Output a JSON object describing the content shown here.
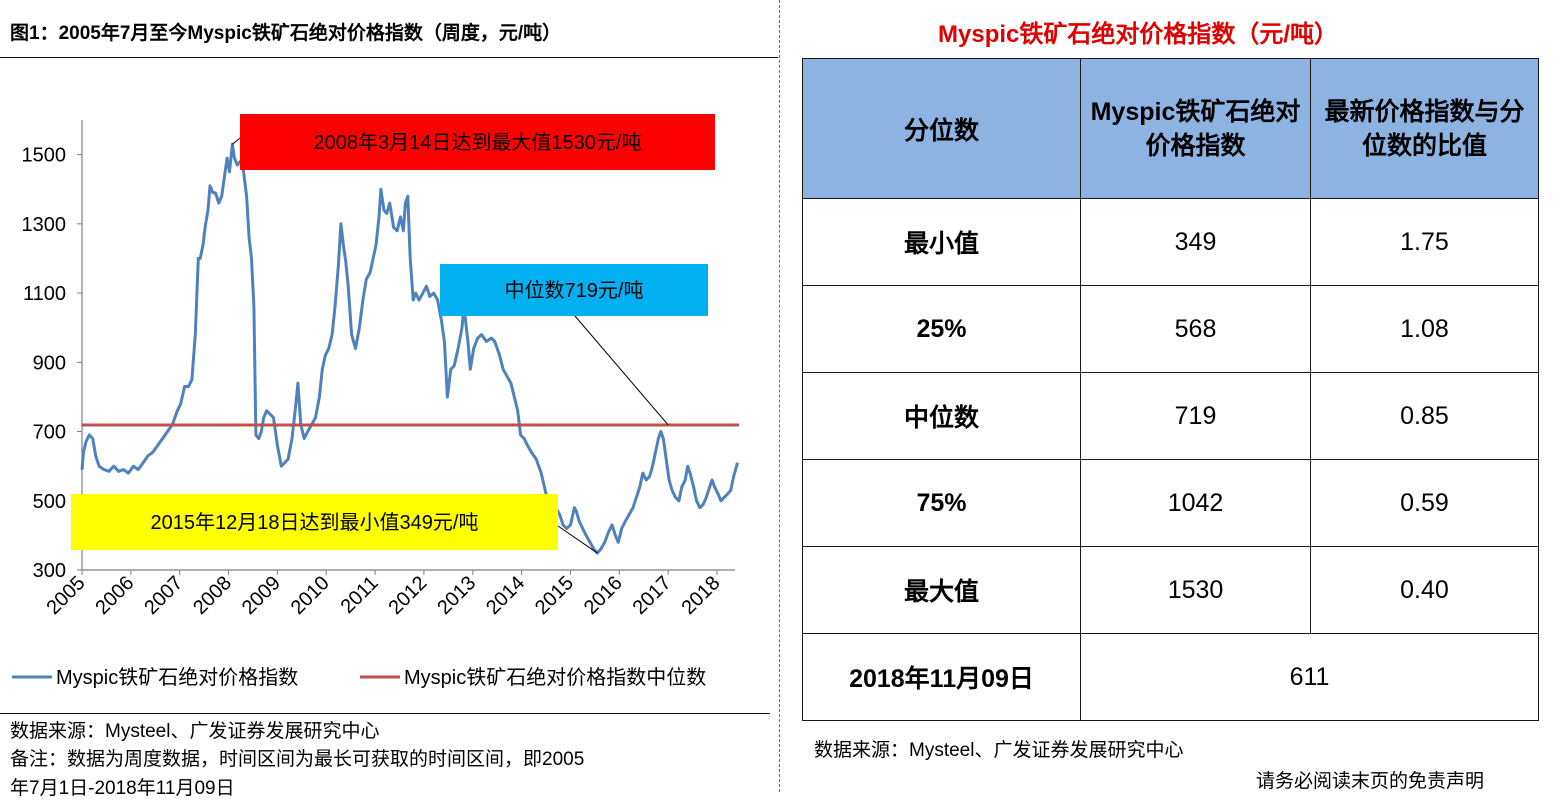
{
  "figure": {
    "title": "图1：2005年7月至今Myspic铁矿石绝对价格指数（周度，元/吨）"
  },
  "chart_data": {
    "type": "line",
    "y_ticks": [
      "300",
      "500",
      "700",
      "900",
      "1100",
      "1300",
      "1500"
    ],
    "x_ticks": [
      "2005",
      "2006",
      "2007",
      "2008",
      "2009",
      "2010",
      "2011",
      "2012",
      "2013",
      "2014",
      "2015",
      "2016",
      "2017",
      "2018"
    ],
    "ylim": [
      300,
      1600
    ],
    "xlim": [
      2005.0,
      2018.4
    ],
    "grid": false,
    "legend_position": "bottom",
    "series": [
      {
        "name": "Myspic铁矿石绝对价格指数",
        "color": "#4f81bd",
        "points": [
          [
            2005.0,
            590
          ],
          [
            2005.03,
            640
          ],
          [
            2005.08,
            670
          ],
          [
            2005.15,
            690
          ],
          [
            2005.22,
            680
          ],
          [
            2005.28,
            630
          ],
          [
            2005.35,
            600
          ],
          [
            2005.45,
            590
          ],
          [
            2005.55,
            585
          ],
          [
            2005.65,
            600
          ],
          [
            2005.75,
            585
          ],
          [
            2005.85,
            590
          ],
          [
            2005.95,
            580
          ],
          [
            2006.05,
            600
          ],
          [
            2006.15,
            590
          ],
          [
            2006.25,
            610
          ],
          [
            2006.35,
            630
          ],
          [
            2006.45,
            640
          ],
          [
            2006.55,
            660
          ],
          [
            2006.65,
            680
          ],
          [
            2006.75,
            700
          ],
          [
            2006.85,
            720
          ],
          [
            2006.95,
            760
          ],
          [
            2007.02,
            780
          ],
          [
            2007.1,
            830
          ],
          [
            2007.18,
            830
          ],
          [
            2007.25,
            850
          ],
          [
            2007.32,
            980
          ],
          [
            2007.38,
            1200
          ],
          [
            2007.42,
            1200
          ],
          [
            2007.48,
            1240
          ],
          [
            2007.52,
            1290
          ],
          [
            2007.58,
            1340
          ],
          [
            2007.62,
            1410
          ],
          [
            2007.68,
            1390
          ],
          [
            2007.73,
            1390
          ],
          [
            2007.8,
            1360
          ],
          [
            2007.86,
            1380
          ],
          [
            2007.93,
            1450
          ],
          [
            2007.97,
            1490
          ],
          [
            2008.02,
            1450
          ],
          [
            2008.08,
            1530
          ],
          [
            2008.12,
            1490
          ],
          [
            2008.18,
            1470
          ],
          [
            2008.24,
            1480
          ],
          [
            2008.3,
            1460
          ],
          [
            2008.37,
            1380
          ],
          [
            2008.42,
            1260
          ],
          [
            2008.47,
            1200
          ],
          [
            2008.52,
            1060
          ],
          [
            2008.56,
            690
          ],
          [
            2008.62,
            680
          ],
          [
            2008.67,
            700
          ],
          [
            2008.72,
            740
          ],
          [
            2008.78,
            760
          ],
          [
            2008.85,
            750
          ],
          [
            2008.92,
            740
          ],
          [
            2009.0,
            660
          ],
          [
            2009.08,
            600
          ],
          [
            2009.15,
            610
          ],
          [
            2009.22,
            620
          ],
          [
            2009.3,
            680
          ],
          [
            2009.38,
            780
          ],
          [
            2009.42,
            840
          ],
          [
            2009.48,
            720
          ],
          [
            2009.55,
            680
          ],
          [
            2009.62,
            700
          ],
          [
            2009.7,
            720
          ],
          [
            2009.78,
            740
          ],
          [
            2009.86,
            800
          ],
          [
            2009.92,
            880
          ],
          [
            2009.98,
            920
          ],
          [
            2010.05,
            940
          ],
          [
            2010.12,
            980
          ],
          [
            2010.18,
            1060
          ],
          [
            2010.25,
            1180
          ],
          [
            2010.3,
            1300
          ],
          [
            2010.35,
            1240
          ],
          [
            2010.4,
            1190
          ],
          [
            2010.45,
            1120
          ],
          [
            2010.52,
            980
          ],
          [
            2010.6,
            940
          ],
          [
            2010.68,
            1000
          ],
          [
            2010.75,
            1080
          ],
          [
            2010.82,
            1140
          ],
          [
            2010.9,
            1160
          ],
          [
            2010.96,
            1200
          ],
          [
            2011.02,
            1240
          ],
          [
            2011.08,
            1320
          ],
          [
            2011.12,
            1400
          ],
          [
            2011.18,
            1340
          ],
          [
            2011.24,
            1330
          ],
          [
            2011.3,
            1360
          ],
          [
            2011.38,
            1290
          ],
          [
            2011.45,
            1280
          ],
          [
            2011.52,
            1320
          ],
          [
            2011.58,
            1280
          ],
          [
            2011.62,
            1360
          ],
          [
            2011.67,
            1380
          ],
          [
            2011.72,
            1200
          ],
          [
            2011.78,
            1080
          ],
          [
            2011.83,
            1100
          ],
          [
            2011.9,
            1080
          ],
          [
            2011.98,
            1100
          ],
          [
            2012.05,
            1120
          ],
          [
            2012.12,
            1090
          ],
          [
            2012.2,
            1100
          ],
          [
            2012.28,
            1080
          ],
          [
            2012.36,
            1020
          ],
          [
            2012.42,
            960
          ],
          [
            2012.48,
            800
          ],
          [
            2012.55,
            880
          ],
          [
            2012.62,
            890
          ],
          [
            2012.7,
            940
          ],
          [
            2012.78,
            1000
          ],
          [
            2012.82,
            1060
          ],
          [
            2012.9,
            960
          ],
          [
            2012.95,
            880
          ],
          [
            2013.02,
            940
          ],
          [
            2013.1,
            970
          ],
          [
            2013.18,
            980
          ],
          [
            2013.28,
            960
          ],
          [
            2013.38,
            970
          ],
          [
            2013.45,
            960
          ],
          [
            2013.55,
            920
          ],
          [
            2013.62,
            880
          ],
          [
            2013.7,
            860
          ],
          [
            2013.78,
            840
          ],
          [
            2013.85,
            800
          ],
          [
            2013.92,
            760
          ],
          [
            2013.98,
            690
          ],
          [
            2014.05,
            680
          ],
          [
            2014.12,
            660
          ],
          [
            2014.2,
            640
          ],
          [
            2014.3,
            620
          ],
          [
            2014.4,
            580
          ],
          [
            2014.5,
            520
          ],
          [
            2014.6,
            500
          ],
          [
            2014.7,
            480
          ],
          [
            2014.78,
            460
          ],
          [
            2014.85,
            430
          ],
          [
            2014.92,
            420
          ],
          [
            2015.0,
            430
          ],
          [
            2015.08,
            480
          ],
          [
            2015.12,
            470
          ],
          [
            2015.18,
            440
          ],
          [
            2015.25,
            420
          ],
          [
            2015.32,
            400
          ],
          [
            2015.4,
            380
          ],
          [
            2015.48,
            360
          ],
          [
            2015.55,
            349
          ],
          [
            2015.62,
            360
          ],
          [
            2015.7,
            380
          ],
          [
            2015.78,
            410
          ],
          [
            2015.85,
            430
          ],
          [
            2015.92,
            400
          ],
          [
            2015.98,
            380
          ],
          [
            2016.05,
            420
          ],
          [
            2016.12,
            440
          ],
          [
            2016.2,
            460
          ],
          [
            2016.28,
            480
          ],
          [
            2016.35,
            510
          ],
          [
            2016.42,
            540
          ],
          [
            2016.48,
            580
          ],
          [
            2016.55,
            560
          ],
          [
            2016.62,
            570
          ],
          [
            2016.68,
            600
          ],
          [
            2016.74,
            640
          ],
          [
            2016.8,
            680
          ],
          [
            2016.85,
            700
          ],
          [
            2016.9,
            680
          ],
          [
            2016.96,
            620
          ],
          [
            2017.02,
            560
          ],
          [
            2017.08,
            530
          ],
          [
            2017.15,
            510
          ],
          [
            2017.22,
            500
          ],
          [
            2017.28,
            540
          ],
          [
            2017.35,
            560
          ],
          [
            2017.4,
            600
          ],
          [
            2017.45,
            580
          ],
          [
            2017.52,
            540
          ],
          [
            2017.58,
            500
          ],
          [
            2017.65,
            480
          ],
          [
            2017.72,
            490
          ],
          [
            2017.78,
            510
          ],
          [
            2017.85,
            540
          ],
          [
            2017.9,
            560
          ],
          [
            2017.95,
            540
          ],
          [
            2018.02,
            520
          ],
          [
            2018.08,
            500
          ],
          [
            2018.15,
            510
          ],
          [
            2018.22,
            520
          ],
          [
            2018.28,
            530
          ],
          [
            2018.34,
            570
          ],
          [
            2018.38,
            590
          ],
          [
            2018.42,
            610
          ]
        ]
      },
      {
        "name": "Myspic铁矿石绝对价格指数中位数",
        "color": "#c0504d",
        "points": [
          [
            2005.0,
            719
          ],
          [
            2018.45,
            719
          ]
        ]
      }
    ],
    "annotations": [
      {
        "text": "2008年3月14日达到最大值1530元/吨",
        "bg": "#ff0000",
        "target": [
          2008.08,
          1530
        ]
      },
      {
        "text": "中位数719元/吨",
        "bg": "#00b0f0",
        "target": [
          2017.0,
          719
        ]
      },
      {
        "text": "2015年12月18日达到最小值349元/吨",
        "bg": "#ffff00",
        "target": [
          2015.55,
          349
        ]
      }
    ]
  },
  "table": {
    "title": "Myspic铁矿石绝对价格指数（元/吨）",
    "headers": [
      "分位数",
      "Myspic铁矿石绝对价格指数",
      "最新价格指数与分位数的比值"
    ],
    "rows": [
      {
        "label": "最小值",
        "value": "349",
        "ratio": "1.75"
      },
      {
        "label": "25%",
        "value": "568",
        "ratio": "1.08"
      },
      {
        "label": "中位数",
        "value": "719",
        "ratio": "0.85"
      },
      {
        "label": "75%",
        "value": "1042",
        "ratio": "0.59"
      },
      {
        "label": "最大值",
        "value": "1530",
        "ratio": "0.40"
      }
    ],
    "latest": {
      "label": "2018年11月09日",
      "value": "611"
    }
  },
  "footer": {
    "source_left": "数据来源：Mysteel、广发证券发展研究中心",
    "note_line1": "备注：数据为周度数据，时间区间为最长可获取的时间区间，即2005",
    "note_line2": "年7月1日-2018年11月09日",
    "source_right": "数据来源：Mysteel、广发证券发展研究中心",
    "disclaimer": "请务必阅读末页的免责声明"
  }
}
